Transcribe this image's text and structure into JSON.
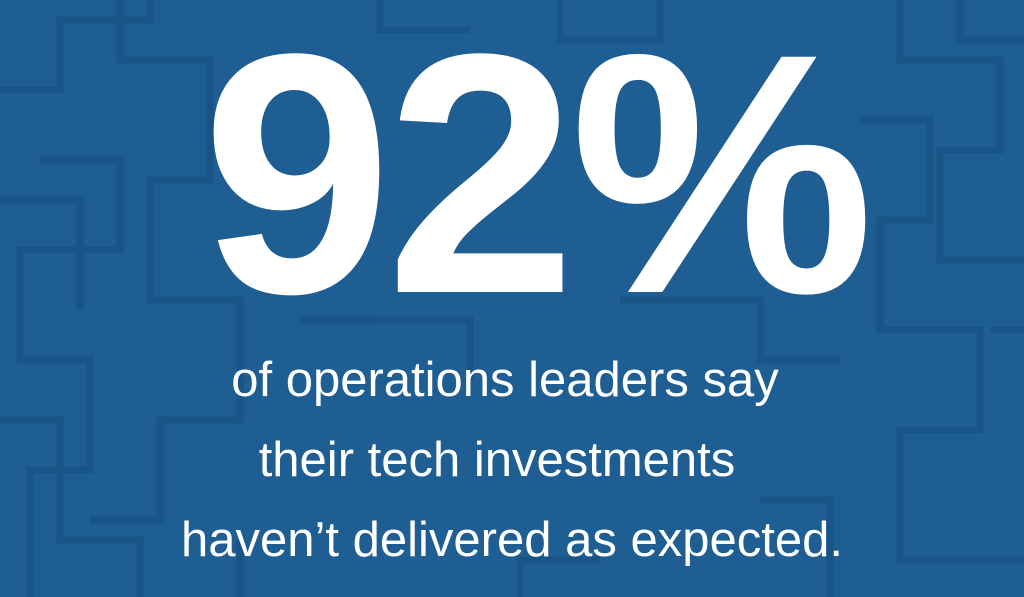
{
  "stat": "92%",
  "caption": {
    "lines": [
      "of operations leaders say",
      "their tech investments",
      "haven’t delivered as expected."
    ]
  }
}
